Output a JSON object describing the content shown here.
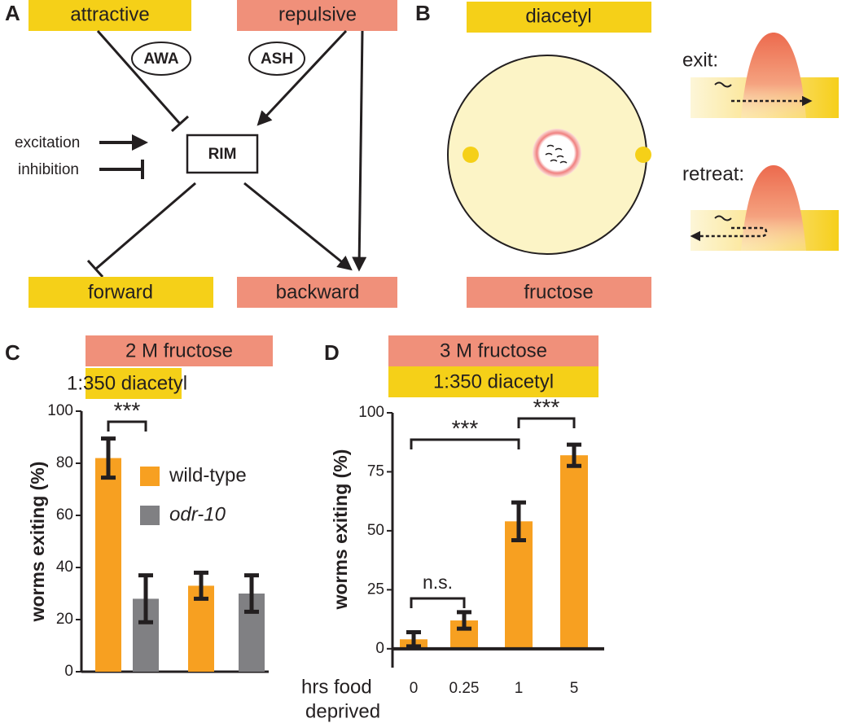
{
  "panels": {
    "a": {
      "label": "A",
      "stimuli": [
        "attractive",
        "repulsive"
      ],
      "sensors": [
        "AWA",
        "ASH"
      ],
      "interneuron": "RIM",
      "legend": [
        "excitation",
        "inhibition"
      ],
      "outputs": [
        "forward",
        "backward"
      ]
    },
    "b": {
      "label": "B",
      "top": "diacetyl",
      "bottom": "fructose",
      "behaviors": [
        "exit:",
        "retreat:"
      ]
    }
  },
  "chart_data": [
    {
      "type": "bar",
      "panel": "C",
      "conditions": [
        "2 M fructose",
        "1:350 diacetyl"
      ],
      "y_label": "worms exiting (%)",
      "categories": [
        null,
        null
      ],
      "series": [
        {
          "name": "wild-type",
          "color": "#f7a021",
          "values": [
            82,
            33
          ],
          "errors": [
            7.5,
            5
          ]
        },
        {
          "name": "odr-10",
          "color": "#808083",
          "values": [
            28,
            30
          ],
          "errors": [
            9,
            7
          ]
        }
      ],
      "ylim": [
        0,
        100
      ],
      "yticks": [
        0,
        20,
        40,
        60,
        80,
        100
      ],
      "annotations": [
        "***"
      ]
    },
    {
      "type": "bar",
      "panel": "D",
      "conditions": [
        "3 M fructose",
        "1:350 diacetyl"
      ],
      "y_label": "worms exiting (%)",
      "x_label": [
        "hrs food",
        "deprived"
      ],
      "categories": [
        "0",
        "0.25",
        "1",
        "5"
      ],
      "series": [
        {
          "name": "wild-type",
          "color": "#f7a021",
          "values": [
            4,
            12,
            54,
            82
          ],
          "errors": [
            3,
            3.5,
            8,
            4.5
          ]
        }
      ],
      "ylim": [
        -8,
        100
      ],
      "yticks": [
        0,
        25,
        50,
        75,
        100
      ],
      "annotations": [
        "n.s.",
        "***",
        "***"
      ]
    }
  ]
}
